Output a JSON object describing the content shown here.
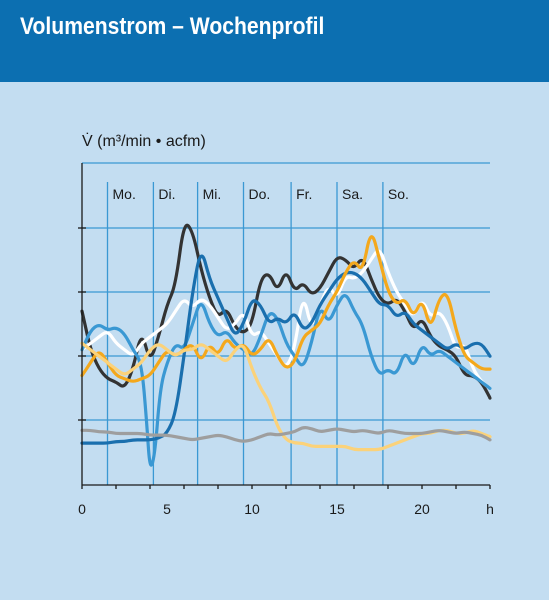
{
  "header": {
    "title": "Volumenstrom – Wochenprofil"
  },
  "colors": {
    "header_bg": "#0c6fb1",
    "panel_bg": "#c3ddf1",
    "grid": "#3a98d3",
    "axis": "#1a1a1a"
  },
  "chart_data": {
    "type": "line",
    "title": "Volumenstrom – Wochenprofil",
    "ylabel": "V̇ (m³/min • acfm)",
    "xlabel": "h",
    "xlim": [
      0,
      24
    ],
    "ylim": [
      0,
      100
    ],
    "x_ticks": [
      0,
      5,
      10,
      15,
      20
    ],
    "x_tick_labels": [
      "0",
      "5",
      "10",
      "15",
      "20"
    ],
    "x_unit_label": "h",
    "grid": true,
    "day_labels": [
      {
        "label": "Mo.",
        "x": 1.5
      },
      {
        "label": "Di.",
        "x": 4.2
      },
      {
        "label": "Mi.",
        "x": 6.8
      },
      {
        "label": "Do.",
        "x": 9.5
      },
      {
        "label": "Fr.",
        "x": 12.3
      },
      {
        "label": "Sa.",
        "x": 15.0
      },
      {
        "label": "So.",
        "x": 17.7
      }
    ],
    "series": [
      {
        "color": "#333333",
        "x": [
          0,
          0.5,
          1,
          1.5,
          2,
          2.5,
          3,
          3.5,
          4,
          4.5,
          5,
          5.5,
          6,
          6.5,
          7,
          7.5,
          8,
          8.5,
          9,
          9.5,
          10,
          10.5,
          11,
          11.5,
          12,
          12.5,
          13,
          13.5,
          14,
          14.5,
          15,
          15.5,
          16,
          16.5,
          17,
          17.5,
          18,
          18.5,
          19,
          19.5,
          20,
          20.5,
          21,
          21.5,
          22,
          22.5,
          23,
          23.5,
          24
        ],
        "values": [
          54,
          42,
          36,
          33,
          32,
          30,
          36,
          48,
          38,
          46,
          56,
          62,
          82,
          79,
          67,
          58,
          52,
          55,
          49,
          47,
          50,
          64,
          66,
          60,
          67,
          60,
          63,
          59,
          61,
          66,
          71,
          70,
          67,
          71,
          64,
          58,
          56,
          58,
          54,
          48,
          52,
          46,
          43,
          42,
          40,
          34,
          34,
          32,
          27
        ]
      },
      {
        "color": "#ffffff",
        "x": [
          0,
          0.5,
          1,
          1.5,
          2,
          2.5,
          3,
          3.5,
          4,
          4.5,
          5,
          5.5,
          6,
          6.5,
          7,
          7.5,
          8,
          8.5,
          9,
          9.5,
          10,
          10.5,
          11,
          11.5,
          12,
          12.5,
          13,
          13.5,
          14,
          14.5,
          15,
          15.5,
          16,
          16.5,
          17,
          17.5,
          18,
          18.5,
          19,
          19.5,
          20,
          20.5,
          21,
          21.5,
          22,
          22.5,
          23,
          23.5,
          24
        ],
        "values": [
          42,
          44,
          46,
          48,
          44,
          42,
          40,
          44,
          46,
          48,
          50,
          54,
          58,
          55,
          58,
          56,
          52,
          48,
          50,
          54,
          46,
          48,
          44,
          40,
          36,
          42,
          60,
          48,
          56,
          62,
          58,
          65,
          64,
          66,
          70,
          74,
          66,
          60,
          56,
          52,
          58,
          52,
          54,
          50,
          42,
          44,
          36,
          32,
          30
        ]
      },
      {
        "color": "#3a98d3",
        "x": [
          0,
          0.5,
          1,
          1.5,
          2,
          2.5,
          3,
          3.5,
          3.8,
          4,
          4.3,
          4.6,
          5,
          5.5,
          6,
          6.5,
          7,
          7.5,
          8,
          8.5,
          9,
          9.5,
          10,
          10.5,
          11,
          11.5,
          12,
          12.5,
          13,
          13.5,
          14,
          14.5,
          15,
          15.5,
          16,
          16.5,
          17,
          17.5,
          18,
          18.5,
          19,
          19.5,
          20,
          20.5,
          21,
          21.5,
          22,
          22.5,
          23,
          23.5,
          24
        ],
        "values": [
          42,
          48,
          50,
          48,
          49,
          47,
          42,
          38,
          20,
          4,
          10,
          30,
          38,
          44,
          42,
          50,
          58,
          50,
          46,
          48,
          44,
          42,
          40,
          46,
          54,
          52,
          44,
          40,
          36,
          44,
          56,
          50,
          56,
          60,
          54,
          50,
          40,
          34,
          36,
          34,
          42,
          36,
          44,
          40,
          42,
          40,
          38,
          36,
          34,
          32,
          30
        ]
      },
      {
        "color": "#1a6fae",
        "x": [
          0,
          0.5,
          1,
          1.5,
          2,
          2.5,
          3,
          3.5,
          4,
          4.5,
          5,
          5.5,
          6,
          6.5,
          7,
          7.5,
          8,
          8.5,
          9,
          9.5,
          10,
          10.5,
          11,
          11.5,
          12,
          12.5,
          13,
          13.5,
          14,
          14.5,
          15,
          15.5,
          16,
          16.5,
          17,
          17.5,
          18,
          18.5,
          19,
          19.5,
          20,
          20.5,
          21,
          21.5,
          22,
          22.5,
          23,
          23.5,
          24
        ],
        "values": [
          13,
          13,
          13,
          13,
          13.5,
          13.5,
          14,
          14,
          14,
          14.5,
          16,
          22,
          40,
          60,
          74,
          64,
          58,
          52,
          46,
          50,
          58,
          56,
          50,
          52,
          50,
          54,
          48,
          50,
          56,
          60,
          64,
          66,
          66,
          64,
          60,
          56,
          56,
          52,
          54,
          50,
          48,
          46,
          44,
          42,
          44,
          42,
          44,
          44,
          40
        ]
      },
      {
        "color": "#f4a81c",
        "x": [
          0,
          0.5,
          1,
          1.5,
          2,
          2.5,
          3,
          3.5,
          4,
          4.5,
          5,
          5.5,
          6,
          6.5,
          7,
          7.5,
          8,
          8.5,
          9,
          9.5,
          10,
          10.5,
          11,
          11.5,
          12,
          12.5,
          13,
          13.5,
          14,
          14.5,
          15,
          15.5,
          16,
          16.5,
          17,
          17.5,
          18,
          18.5,
          19,
          19.5,
          20,
          20.5,
          21,
          21.5,
          22,
          22.5,
          23,
          23.5,
          24
        ],
        "values": [
          34,
          38,
          42,
          38,
          34,
          33,
          32,
          33,
          34,
          38,
          42,
          40,
          42,
          44,
          38,
          44,
          40,
          46,
          42,
          44,
          40,
          42,
          46,
          40,
          36,
          38,
          46,
          48,
          50,
          56,
          60,
          66,
          70,
          66,
          80,
          70,
          60,
          56,
          58,
          52,
          58,
          48,
          58,
          60,
          48,
          40,
          38,
          36,
          36
        ]
      },
      {
        "color": "#fbd27a",
        "x": [
          0,
          0.5,
          1,
          1.5,
          2,
          2.5,
          3,
          3.5,
          4,
          4.5,
          5,
          5.5,
          6,
          6.5,
          7,
          7.5,
          8,
          8.5,
          9,
          9.5,
          10,
          10.5,
          11,
          11.5,
          12,
          12.5,
          13,
          13.5,
          14,
          14.5,
          15,
          15.5,
          16,
          16.5,
          17,
          17.5,
          18,
          18.5,
          19,
          19.5,
          20,
          20.5,
          21,
          21.5,
          22,
          22.5,
          23,
          23.5,
          24
        ],
        "values": [
          44,
          42,
          40,
          38,
          36,
          34,
          36,
          38,
          42,
          44,
          42,
          40,
          42,
          42,
          44,
          42,
          40,
          38,
          42,
          44,
          36,
          30,
          26,
          18,
          14,
          13,
          13,
          12,
          12,
          12,
          12,
          12,
          11,
          11,
          11,
          11,
          12,
          13,
          14,
          15,
          16,
          16,
          17,
          17,
          16,
          16,
          17,
          16,
          15
        ]
      },
      {
        "color": "#9e9e9e",
        "x": [
          0,
          0.5,
          1,
          1.5,
          2,
          2.5,
          3,
          3.5,
          4,
          4.5,
          5,
          5.5,
          6,
          6.5,
          7,
          7.5,
          8,
          8.5,
          9,
          9.5,
          10,
          10.5,
          11,
          11.5,
          12,
          12.5,
          13,
          13.5,
          14,
          14.5,
          15,
          15.5,
          16,
          16.5,
          17,
          17.5,
          18,
          18.5,
          19,
          19.5,
          20,
          20.5,
          21,
          21.5,
          22,
          22.5,
          23,
          23.5,
          24
        ],
        "values": [
          17,
          17,
          16.5,
          16.5,
          16,
          16,
          16,
          16,
          15.5,
          15.5,
          15.5,
          15,
          14.5,
          14,
          14.5,
          15,
          15.5,
          15,
          14,
          13.5,
          14,
          15,
          16,
          15.5,
          16,
          16.5,
          18,
          17.5,
          16.5,
          17,
          17.5,
          17,
          16.5,
          17,
          16.5,
          16,
          17,
          16.5,
          16,
          16,
          16,
          16.5,
          17,
          16.5,
          16,
          16.5,
          16,
          15.5,
          14
        ]
      }
    ]
  }
}
